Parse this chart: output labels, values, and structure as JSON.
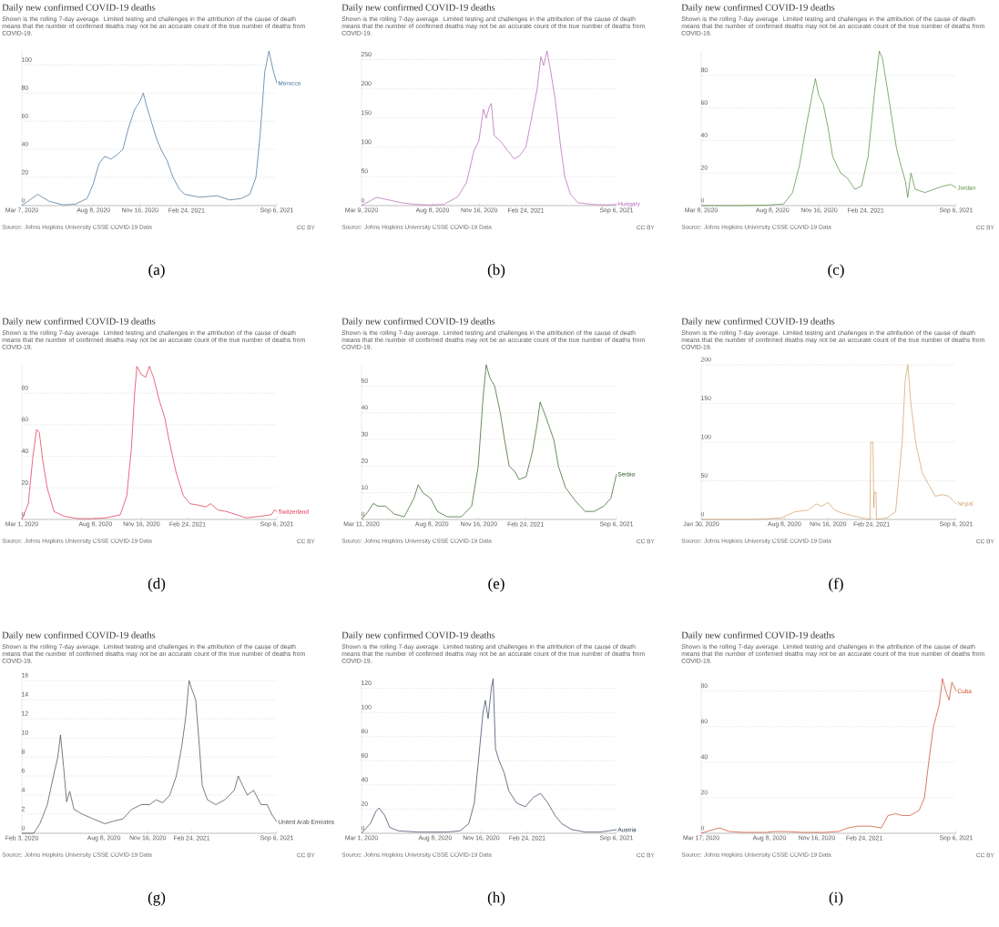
{
  "chart_data": [
    {
      "type": "line",
      "title": "Daily new confirmed COVID-19 deaths",
      "subtitle": "Shown is the rolling 7-day average. Limited testing and challenges in the attribution of the cause of death means that the number of confirmed deaths may not be an accurate count of the true number of deaths from COVID-19.",
      "annotations": [
        "Source: Johns Hopkins University CSSE COVID-19 Data",
        "CC BY",
        "(a)"
      ],
      "grid": "y",
      "xlim": [
        "2020-03-07",
        "2021-09-06"
      ],
      "xticks": [
        {
          "value": "2020-03-07",
          "label": "Mar 7, 2020"
        },
        {
          "value": "2020-08-08",
          "label": "Aug 8, 2020"
        },
        {
          "value": "2020-11-16",
          "label": "Nov 16, 2020"
        },
        {
          "value": "2021-02-24",
          "label": "Feb 24, 2021"
        },
        {
          "value": "2021-09-06",
          "label": "Sep 6, 2021"
        }
      ],
      "ylim": [
        0,
        110
      ],
      "yticks": [
        0,
        20,
        40,
        60,
        80,
        100
      ],
      "x": [
        "2020-03-07",
        "2020-04-10",
        "2020-05-05",
        "2020-06-04",
        "2020-06-30",
        "2020-07-25",
        "2020-08-07",
        "2020-08-20",
        "2020-09-01",
        "2020-09-14",
        "2020-09-27",
        "2020-10-10",
        "2020-10-22",
        "2020-11-04",
        "2020-11-17",
        "2020-11-23",
        "2020-11-29",
        "2020-12-10",
        "2020-12-21",
        "2020-12-31",
        "2021-01-13",
        "2021-01-26",
        "2021-02-08",
        "2021-02-20",
        "2021-03-24",
        "2021-05-01",
        "2021-05-27",
        "2021-06-21",
        "2021-07-10",
        "2021-07-23",
        "2021-08-01",
        "2021-08-11",
        "2021-08-20",
        "2021-08-30",
        "2021-09-06"
      ],
      "series": [
        {
          "name": "Morocco",
          "color": "#3e6a91",
          "values": [
            0,
            8,
            3,
            0.5,
            1,
            5,
            15,
            30,
            35,
            33,
            36,
            40,
            55,
            68,
            75,
            80,
            72,
            60,
            48,
            40,
            32,
            20,
            12,
            8,
            6,
            7,
            4,
            5,
            8,
            20,
            50,
            95,
            110,
            95,
            87
          ]
        }
      ]
    },
    {
      "type": "line",
      "title": "Daily new confirmed COVID-19 deaths",
      "subtitle": "Shown is the rolling 7-day average. Limited testing and challenges in the attribution of the cause of death means that the number of confirmed deaths may not be an accurate count of the true number of deaths from COVID-19.",
      "annotations": [
        "Source: Johns Hopkins University CSSE COVID-19 Data",
        "CC BY",
        "(b)"
      ],
      "grid": "y",
      "xlim": [
        "2020-03-09",
        "2021-09-06"
      ],
      "xticks": [
        {
          "value": "2020-03-09",
          "label": "Mar 9, 2020"
        },
        {
          "value": "2020-08-08",
          "label": "Aug 8, 2020"
        },
        {
          "value": "2020-11-16",
          "label": "Nov 16, 2020"
        },
        {
          "value": "2021-02-24",
          "label": "Feb 24, 2021"
        },
        {
          "value": "2021-09-06",
          "label": "Sep 6, 2021"
        }
      ],
      "ylim": [
        0,
        265
      ],
      "yticks": [
        0,
        50,
        100,
        150,
        200,
        250
      ],
      "x": [
        "2020-03-09",
        "2020-04-10",
        "2020-05-05",
        "2020-06-01",
        "2020-07-01",
        "2020-08-01",
        "2020-09-01",
        "2020-10-01",
        "2020-10-20",
        "2020-11-05",
        "2020-11-15",
        "2020-11-25",
        "2020-12-01",
        "2020-12-08",
        "2020-12-12",
        "2020-12-18",
        "2021-01-01",
        "2021-01-15",
        "2021-01-30",
        "2021-02-10",
        "2021-02-24",
        "2021-03-08",
        "2021-03-20",
        "2021-03-28",
        "2021-04-03",
        "2021-04-10",
        "2021-04-18",
        "2021-04-28",
        "2021-05-08",
        "2021-05-18",
        "2021-05-30",
        "2021-06-15",
        "2021-07-15",
        "2021-08-15",
        "2021-09-06"
      ],
      "series": [
        {
          "name": "Hungary",
          "color": "#b05fb3",
          "values": [
            0,
            14,
            10,
            5,
            2,
            1,
            2,
            15,
            40,
            95,
            110,
            165,
            150,
            170,
            175,
            120,
            110,
            95,
            80,
            85,
            100,
            150,
            200,
            255,
            240,
            265,
            230,
            180,
            110,
            50,
            20,
            5,
            2,
            1,
            2
          ]
        }
      ]
    },
    {
      "type": "line",
      "title": "Daily new confirmed COVID-19 deaths",
      "subtitle": "Shown is the rolling 7-day average. Limited testing and challenges in the attribution of the cause of death means that the number of confirmed deaths may not be an accurate count of the true number of deaths from COVID-19.",
      "annotations": [
        "Source: Johns Hopkins University CSSE COVID-19 Data",
        "CC BY",
        "(c)"
      ],
      "grid": "y",
      "xlim": [
        "2020-03-08",
        "2021-09-06"
      ],
      "xticks": [
        {
          "value": "2020-03-08",
          "label": "Mar 8, 2020"
        },
        {
          "value": "2020-08-08",
          "label": "Aug 8, 2020"
        },
        {
          "value": "2020-11-16",
          "label": "Nov 16, 2020"
        },
        {
          "value": "2021-02-24",
          "label": "Feb 24, 2021"
        },
        {
          "value": "2021-09-06",
          "label": "Sep 6, 2021"
        }
      ],
      "ylim": [
        0,
        95
      ],
      "yticks": [
        0,
        20,
        40,
        60,
        80
      ],
      "x": [
        "2020-03-08",
        "2020-06-01",
        "2020-08-01",
        "2020-09-01",
        "2020-09-20",
        "2020-10-05",
        "2020-10-20",
        "2020-11-01",
        "2020-11-08",
        "2020-11-15",
        "2020-11-25",
        "2020-12-05",
        "2020-12-15",
        "2021-01-01",
        "2021-01-15",
        "2021-02-01",
        "2021-02-15",
        "2021-03-01",
        "2021-03-15",
        "2021-03-25",
        "2021-04-01",
        "2021-04-15",
        "2021-05-01",
        "2021-05-10",
        "2021-05-20",
        "2021-05-25",
        "2021-06-01",
        "2021-06-10",
        "2021-07-01",
        "2021-07-20",
        "2021-08-10",
        "2021-08-25",
        "2021-09-06"
      ],
      "series": [
        {
          "name": "Jordan",
          "color": "#4c8a35",
          "values": [
            0,
            0,
            0.3,
            1,
            8,
            25,
            50,
            68,
            78,
            68,
            62,
            48,
            30,
            20,
            17,
            10,
            12,
            30,
            70,
            95,
            90,
            65,
            35,
            25,
            15,
            5,
            20,
            10,
            8,
            10,
            12,
            13,
            11
          ]
        }
      ]
    },
    {
      "type": "line",
      "title": "Daily new confirmed COVID-19 deaths",
      "subtitle": "Shown is the rolling 7-day average. Limited testing and challenges in the attribution of the cause of death means that the number of confirmed deaths may not be an accurate count of the true number of deaths from COVID-19.",
      "annotations": [
        "Source: Johns Hopkins University CSSE COVID-19 Data",
        "CC BY",
        "(d)"
      ],
      "grid": "y",
      "xlim": [
        "2020-03-01",
        "2021-09-06"
      ],
      "xticks": [
        {
          "value": "2020-03-01",
          "label": "Mar 1, 2020"
        },
        {
          "value": "2020-08-08",
          "label": "Aug 8, 2020"
        },
        {
          "value": "2020-11-16",
          "label": "Nov 16, 2020"
        },
        {
          "value": "2021-02-24",
          "label": "Feb 24, 2021"
        },
        {
          "value": "2021-09-06",
          "label": "Sep 6, 2021"
        }
      ],
      "ylim": [
        0,
        98
      ],
      "yticks": [
        0,
        20,
        40,
        60,
        80
      ],
      "x": [
        "2020-03-01",
        "2020-03-15",
        "2020-03-25",
        "2020-04-02",
        "2020-04-08",
        "2020-04-15",
        "2020-04-25",
        "2020-05-10",
        "2020-06-01",
        "2020-07-01",
        "2020-08-01",
        "2020-09-01",
        "2020-10-01",
        "2020-10-15",
        "2020-10-25",
        "2020-11-01",
        "2020-11-06",
        "2020-11-15",
        "2020-11-25",
        "2020-12-03",
        "2020-12-12",
        "2020-12-25",
        "2021-01-05",
        "2021-01-15",
        "2021-01-30",
        "2021-02-15",
        "2021-03-01",
        "2021-03-20",
        "2021-04-05",
        "2021-04-15",
        "2021-05-01",
        "2021-05-20",
        "2021-06-10",
        "2021-07-01",
        "2021-08-01",
        "2021-08-25",
        "2021-09-01",
        "2021-09-06"
      ],
      "series": [
        {
          "name": "Switzerland",
          "color": "#e0284a",
          "values": [
            0,
            10,
            40,
            57,
            55,
            38,
            20,
            5,
            2,
            0.5,
            0.5,
            1,
            3,
            15,
            45,
            80,
            97,
            92,
            90,
            97,
            90,
            75,
            65,
            50,
            30,
            15,
            10,
            9,
            8,
            10,
            6,
            5,
            3,
            1,
            2,
            3,
            6,
            5
          ]
        }
      ]
    },
    {
      "type": "line",
      "title": "Daily new confirmed COVID-19 deaths",
      "subtitle": "Shown is the rolling 7-day average. Limited testing and challenges in the attribution of the cause of death means that the number of confirmed deaths may not be an accurate count of the true number of deaths from COVID-19.",
      "annotations": [
        "Source: Johns Hopkins University CSSE COVID-19 Data",
        "CC BY",
        "(e)"
      ],
      "grid": "y",
      "xlim": [
        "2020-03-11",
        "2021-09-06"
      ],
      "xticks": [
        {
          "value": "2020-03-11",
          "label": "Mar 11, 2020"
        },
        {
          "value": "2020-08-08",
          "label": "Aug 8, 2020"
        },
        {
          "value": "2020-11-16",
          "label": "Nov 16, 2020"
        },
        {
          "value": "2021-02-24",
          "label": "Feb 24, 2021"
        },
        {
          "value": "2021-09-06",
          "label": "Sep 6, 2021"
        }
      ],
      "ylim": [
        0,
        58
      ],
      "yticks": [
        0,
        10,
        20,
        30,
        40,
        50
      ],
      "x": [
        "2020-03-11",
        "2020-03-25",
        "2020-04-05",
        "2020-04-15",
        "2020-05-01",
        "2020-05-20",
        "2020-06-10",
        "2020-07-01",
        "2020-07-10",
        "2020-07-20",
        "2020-08-05",
        "2020-08-20",
        "2020-09-10",
        "2020-10-10",
        "2020-11-01",
        "2020-11-15",
        "2020-11-25",
        "2020-12-02",
        "2020-12-10",
        "2020-12-20",
        "2021-01-01",
        "2021-01-10",
        "2021-01-20",
        "2021-02-01",
        "2021-02-10",
        "2021-02-25",
        "2021-03-10",
        "2021-03-20",
        "2021-03-27",
        "2021-04-05",
        "2021-04-15",
        "2021-04-25",
        "2021-05-05",
        "2021-05-20",
        "2021-06-10",
        "2021-07-01",
        "2021-07-20",
        "2021-08-10",
        "2021-08-25",
        "2021-09-06"
      ],
      "series": [
        {
          "name": "Serbia",
          "color": "#285c1d",
          "values": [
            0,
            3,
            6,
            5,
            5,
            2,
            1,
            8,
            13,
            10,
            8,
            3,
            1,
            1,
            5,
            20,
            45,
            58,
            53,
            50,
            40,
            30,
            20,
            18,
            15,
            16,
            25,
            35,
            44,
            40,
            35,
            30,
            20,
            12,
            7,
            3,
            3,
            5,
            8,
            17
          ]
        }
      ]
    },
    {
      "type": "line",
      "title": "Daily new confirmed COVID-19 deaths",
      "subtitle": "Shown is the rolling 7-day average. Limited testing and challenges in the attribution of the cause of death means that the number of confirmed deaths may not be an accurate count of the true number of deaths from COVID-19.",
      "annotations": [
        "Source: Johns Hopkins University CSSE COVID-19 Data",
        "CC BY",
        "(f)"
      ],
      "grid": "y",
      "xlim": [
        "2020-01-30",
        "2021-09-06"
      ],
      "xticks": [
        {
          "value": "2020-01-30",
          "label": "Jan 30, 2020"
        },
        {
          "value": "2020-08-08",
          "label": "Aug 8, 2020"
        },
        {
          "value": "2020-11-16",
          "label": "Nov 16, 2020"
        },
        {
          "value": "2021-02-24",
          "label": "Feb 24, 2021"
        },
        {
          "value": "2021-09-06",
          "label": "Sep 6, 2021"
        }
      ],
      "ylim": [
        0,
        200
      ],
      "yticks": [
        0,
        50,
        100,
        150,
        200
      ],
      "x": [
        "2020-01-30",
        "2020-06-01",
        "2020-08-01",
        "2020-09-01",
        "2020-10-01",
        "2020-10-20",
        "2020-11-01",
        "2020-11-16",
        "2020-12-01",
        "2020-12-20",
        "2021-01-10",
        "2021-02-01",
        "2021-02-20",
        "2021-02-22",
        "2021-02-27",
        "2021-03-01",
        "2021-03-02",
        "2021-03-06",
        "2021-03-07",
        "2021-04-01",
        "2021-04-20",
        "2021-05-05",
        "2021-05-12",
        "2021-05-18",
        "2021-05-25",
        "2021-06-05",
        "2021-06-20",
        "2021-07-05",
        "2021-07-20",
        "2021-08-05",
        "2021-08-20",
        "2021-09-06"
      ],
      "series": [
        {
          "name": "Nepal",
          "color": "#d39b63",
          "values": [
            0,
            0,
            2,
            10,
            12,
            20,
            17,
            22,
            12,
            8,
            5,
            2,
            0,
            100,
            100,
            15,
            35,
            35,
            0,
            2,
            10,
            100,
            180,
            200,
            150,
            100,
            60,
            45,
            30,
            32,
            30,
            20
          ]
        }
      ]
    },
    {
      "type": "line",
      "title": "Daily new confirmed COVID-19 deaths",
      "subtitle": "Shown is the rolling 7-day average. Limited testing and challenges in the attribution of the cause of death means that the number of confirmed deaths may not be an accurate count of the true number of deaths from COVID-19.",
      "annotations": [
        "Source: Johns Hopkins University CSSE COVID-19 Data",
        "CC BY",
        "(g)"
      ],
      "grid": "y",
      "xlim": [
        "2020-02-03",
        "2021-09-06"
      ],
      "xticks": [
        {
          "value": "2020-02-03",
          "label": "Feb 3, 2020"
        },
        {
          "value": "2020-08-08",
          "label": "Aug 8, 2020"
        },
        {
          "value": "2020-11-16",
          "label": "Nov 16, 2020"
        },
        {
          "value": "2021-02-24",
          "label": "Feb 24, 2021"
        },
        {
          "value": "2021-09-06",
          "label": "Sep 6, 2021"
        }
      ],
      "ylim": [
        0,
        16.2
      ],
      "yticks": [
        0,
        2,
        4,
        6,
        8,
        10,
        12,
        14,
        16
      ],
      "x": [
        "2020-02-03",
        "2020-03-01",
        "2020-03-15",
        "2020-04-01",
        "2020-04-15",
        "2020-04-25",
        "2020-05-01",
        "2020-05-08",
        "2020-05-15",
        "2020-05-22",
        "2020-06-01",
        "2020-06-20",
        "2020-07-15",
        "2020-08-10",
        "2020-09-01",
        "2020-09-20",
        "2020-10-10",
        "2020-11-01",
        "2020-11-20",
        "2020-12-05",
        "2020-12-20",
        "2021-01-05",
        "2021-01-20",
        "2021-02-01",
        "2021-02-10",
        "2021-02-18",
        "2021-02-25",
        "2021-03-05",
        "2021-03-12",
        "2021-03-20",
        "2021-04-01",
        "2021-04-20",
        "2021-05-10",
        "2021-06-01",
        "2021-06-10",
        "2021-06-20",
        "2021-07-01",
        "2021-07-15",
        "2021-08-01",
        "2021-08-15",
        "2021-08-25",
        "2021-09-06"
      ],
      "series": [
        {
          "name": "United Arab Emirates",
          "color": "#444444",
          "values": [
            0,
            0,
            1,
            3,
            6,
            8,
            10.3,
            7,
            3.3,
            4.4,
            2.5,
            2,
            1.5,
            1,
            1.3,
            1.5,
            2.5,
            3,
            3,
            3.5,
            3.2,
            4,
            6,
            9,
            12,
            16,
            15,
            14,
            10,
            5,
            3.5,
            3,
            3.5,
            4.5,
            6,
            5,
            4,
            4.5,
            3,
            3,
            2,
            1.2
          ]
        }
      ]
    },
    {
      "type": "line",
      "title": "Daily new confirmed COVID-19 deaths",
      "subtitle": "Shown is the rolling 7-day average. Limited testing and challenges in the attribution of the cause of death means that the number of confirmed deaths may not be an accurate count of the true number of deaths from COVID-19.",
      "annotations": [
        "Source: Johns Hopkins University CSSE COVID-19 Data",
        "CC BY",
        "(h)"
      ],
      "grid": "y",
      "xlim": [
        "2020-03-01",
        "2021-09-06"
      ],
      "xticks": [
        {
          "value": "2020-03-01",
          "label": "Mar 1, 2020"
        },
        {
          "value": "2020-08-08",
          "label": "Aug 8, 2020"
        },
        {
          "value": "2020-11-16",
          "label": "Nov 16, 2020"
        },
        {
          "value": "2021-02-24",
          "label": "Feb 24, 2021"
        },
        {
          "value": "2021-09-06",
          "label": "Sep 6, 2021"
        }
      ],
      "ylim": [
        0,
        128
      ],
      "yticks": [
        0,
        20,
        40,
        60,
        80,
        100,
        120
      ],
      "x": [
        "2020-03-01",
        "2020-03-20",
        "2020-04-01",
        "2020-04-08",
        "2020-04-20",
        "2020-05-01",
        "2020-05-20",
        "2020-07-01",
        "2020-08-01",
        "2020-09-01",
        "2020-10-01",
        "2020-10-20",
        "2020-11-01",
        "2020-11-10",
        "2020-11-20",
        "2020-11-25",
        "2020-12-01",
        "2020-12-08",
        "2020-12-12",
        "2020-12-17",
        "2020-12-25",
        "2021-01-05",
        "2021-01-15",
        "2021-02-01",
        "2021-02-20",
        "2021-03-10",
        "2021-03-25",
        "2021-04-10",
        "2021-04-25",
        "2021-05-10",
        "2021-06-01",
        "2021-07-01",
        "2021-08-01",
        "2021-08-20",
        "2021-09-06"
      ],
      "series": [
        {
          "name": "Austria",
          "color": "#2e3b58",
          "values": [
            0,
            8,
            18,
            21,
            15,
            5,
            2,
            1,
            1,
            1,
            2,
            8,
            25,
            60,
            100,
            110,
            95,
            120,
            128,
            70,
            60,
            50,
            35,
            25,
            22,
            30,
            33,
            25,
            15,
            8,
            3,
            1,
            1,
            2,
            3
          ]
        }
      ]
    },
    {
      "type": "line",
      "title": "Daily new confirmed COVID-19 deaths",
      "subtitle": "Shown is the rolling 7-day average. Limited testing and challenges in the attribution of the cause of death means that the number of confirmed deaths may not be an accurate count of the true number of deaths from COVID-19.",
      "annotations": [
        "Source: Johns Hopkins University CSSE COVID-19 Data",
        "CC BY",
        "(i)"
      ],
      "grid": "y",
      "xlim": [
        "2020-03-17",
        "2021-09-06"
      ],
      "xticks": [
        {
          "value": "2020-03-17",
          "label": "Mar 17, 2020"
        },
        {
          "value": "2020-08-08",
          "label": "Aug 8, 2020"
        },
        {
          "value": "2020-11-16",
          "label": "Nov 16, 2020"
        },
        {
          "value": "2021-02-24",
          "label": "Feb 24, 2021"
        },
        {
          "value": "2021-09-06",
          "label": "Sep 6, 2021"
        }
      ],
      "ylim": [
        0,
        87
      ],
      "yticks": [
        0,
        20,
        40,
        60,
        80
      ],
      "x": [
        "2020-03-17",
        "2020-04-10",
        "2020-04-25",
        "2020-05-15",
        "2020-06-15",
        "2020-08-01",
        "2020-08-20",
        "2020-09-10",
        "2020-10-15",
        "2020-12-01",
        "2021-01-01",
        "2021-01-20",
        "2021-02-10",
        "2021-03-10",
        "2021-04-01",
        "2021-04-15",
        "2021-05-01",
        "2021-05-15",
        "2021-06-01",
        "2021-06-20",
        "2021-07-01",
        "2021-07-10",
        "2021-07-20",
        "2021-08-01",
        "2021-08-08",
        "2021-08-15",
        "2021-08-22",
        "2021-08-28",
        "2021-09-06"
      ],
      "series": [
        {
          "name": "Cuba",
          "color": "#c8431d",
          "values": [
            0,
            2,
            3,
            1,
            0.5,
            0.5,
            1,
            1,
            0.5,
            0.5,
            1,
            3,
            4,
            4,
            3,
            10,
            11,
            10,
            10,
            13,
            20,
            40,
            60,
            72,
            87,
            80,
            75,
            85,
            80
          ]
        }
      ]
    }
  ]
}
